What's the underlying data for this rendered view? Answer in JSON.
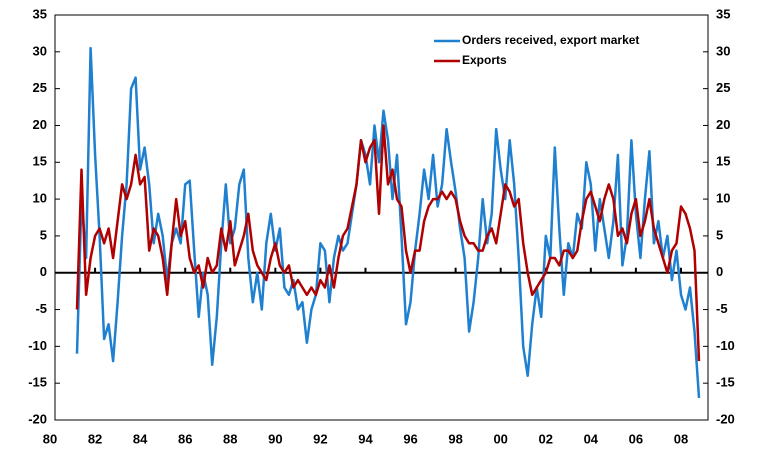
{
  "chart_data": {
    "type": "line",
    "x": [
      1981.2,
      1981.4,
      1981.6,
      1981.8,
      1982.0,
      1982.2,
      1982.4,
      1982.6,
      1982.8,
      1983.0,
      1983.2,
      1983.4,
      1983.6,
      1983.8,
      1984.0,
      1984.2,
      1984.4,
      1984.6,
      1984.8,
      1985.0,
      1985.2,
      1985.4,
      1985.6,
      1985.8,
      1986.0,
      1986.2,
      1986.4,
      1986.6,
      1986.8,
      1987.0,
      1987.2,
      1987.4,
      1987.6,
      1987.8,
      1988.0,
      1988.2,
      1988.4,
      1988.6,
      1988.8,
      1989.0,
      1989.2,
      1989.4,
      1989.6,
      1989.8,
      1990.0,
      1990.2,
      1990.4,
      1990.6,
      1990.8,
      1991.0,
      1991.2,
      1991.4,
      1991.6,
      1991.8,
      1992.0,
      1992.2,
      1992.4,
      1992.6,
      1992.8,
      1993.0,
      1993.2,
      1993.4,
      1993.6,
      1993.8,
      1994.0,
      1994.2,
      1994.4,
      1994.6,
      1994.8,
      1995.0,
      1995.2,
      1995.4,
      1995.6,
      1995.8,
      1996.0,
      1996.2,
      1996.4,
      1996.6,
      1996.8,
      1997.0,
      1997.2,
      1997.4,
      1997.6,
      1997.8,
      1998.0,
      1998.2,
      1998.4,
      1998.6,
      1998.8,
      1999.0,
      1999.2,
      1999.4,
      1999.6,
      1999.8,
      2000.0,
      2000.2,
      2000.4,
      2000.6,
      2000.8,
      2001.0,
      2001.2,
      2001.4,
      2001.6,
      2001.8,
      2002.0,
      2002.2,
      2002.4,
      2002.6,
      2002.8,
      2003.0,
      2003.2,
      2003.4,
      2003.6,
      2003.8,
      2004.0,
      2004.2,
      2004.4,
      2004.6,
      2004.8,
      2005.0,
      2005.2,
      2005.4,
      2005.6,
      2005.8,
      2006.0,
      2006.2,
      2006.4,
      2006.6,
      2006.8,
      2007.0,
      2007.2,
      2007.4,
      2007.6,
      2007.8,
      2008.0,
      2008.2,
      2008.4,
      2008.6,
      2008.8
    ],
    "series": [
      {
        "name": "Orders received, export market",
        "color": "#1f80d0",
        "values": [
          -11,
          10,
          2,
          30.5,
          16,
          5,
          -9,
          -7,
          -12,
          -4,
          5,
          12,
          25,
          26.5,
          14,
          17,
          12,
          4,
          8,
          5,
          -1,
          4,
          6,
          4,
          12,
          12.5,
          3,
          -6,
          0,
          -3,
          -12.5,
          -6,
          4,
          12,
          4,
          6,
          12,
          14,
          2,
          -4,
          0,
          -5,
          4,
          8,
          3,
          6,
          -2,
          -3,
          -1,
          -5,
          -4,
          -9.5,
          -5,
          -3,
          4,
          3,
          -4,
          2,
          5,
          3,
          4,
          8,
          12,
          18,
          16,
          12,
          20,
          15,
          22,
          18,
          10,
          16,
          5,
          -7,
          -4,
          3,
          8,
          14,
          10,
          16,
          9,
          12,
          19.5,
          15,
          11,
          6,
          2,
          -8,
          -4,
          2,
          10,
          4,
          8,
          19.5,
          14,
          10,
          18,
          12,
          2,
          -10,
          -14,
          -7,
          -2,
          -6,
          5,
          2,
          17,
          6,
          -3,
          4,
          2,
          8,
          6,
          15,
          12,
          3,
          10,
          6,
          2,
          7,
          16,
          1,
          5,
          18,
          8,
          2,
          10,
          16.5,
          4,
          7,
          2,
          5,
          -1,
          3,
          -3,
          -5,
          -2,
          -8,
          -17
        ]
      },
      {
        "name": "Exports",
        "color": "#b00000",
        "values": [
          -5,
          14,
          -3,
          2,
          5,
          6,
          4,
          6,
          2,
          7,
          12,
          10,
          12,
          16,
          12,
          13,
          3,
          6,
          5,
          2,
          -3,
          4,
          10,
          5,
          7,
          2,
          0,
          1,
          -2,
          2,
          0,
          1,
          6,
          3,
          7,
          1,
          3,
          5,
          8,
          3,
          1,
          0,
          -1,
          2,
          4,
          1,
          0,
          1,
          -2,
          -1,
          -2,
          -3,
          -2,
          -3,
          -1,
          -2,
          1,
          -2,
          2,
          5,
          6,
          9,
          12,
          18,
          15,
          17,
          18,
          8,
          20,
          12,
          14,
          10,
          9,
          3,
          0,
          3,
          3,
          7,
          9,
          10,
          10,
          11,
          10,
          11,
          10,
          7,
          5,
          4,
          4,
          3,
          3,
          5,
          6,
          4,
          8,
          12,
          11,
          9,
          10,
          4,
          0,
          -3,
          -2,
          -1,
          0,
          2,
          2,
          1,
          3,
          3,
          2,
          3,
          7,
          10,
          11,
          9,
          7,
          10,
          12,
          10,
          5,
          6,
          4,
          8,
          10,
          5,
          7,
          10,
          6,
          4,
          2,
          0,
          3,
          4,
          9,
          8,
          6,
          3,
          -12
        ]
      }
    ],
    "xlim": [
      1980,
      2009.2
    ],
    "xticks": [
      {
        "value": 1980,
        "label": "80"
      },
      {
        "value": 1982,
        "label": "82"
      },
      {
        "value": 1984,
        "label": "84"
      },
      {
        "value": 1986,
        "label": "86"
      },
      {
        "value": 1988,
        "label": "88"
      },
      {
        "value": 1990,
        "label": "90"
      },
      {
        "value": 1992,
        "label": "92"
      },
      {
        "value": 1994,
        "label": "94"
      },
      {
        "value": 1996,
        "label": "96"
      },
      {
        "value": 1998,
        "label": "98"
      },
      {
        "value": 2000,
        "label": "00"
      },
      {
        "value": 2002,
        "label": "02"
      },
      {
        "value": 2004,
        "label": "04"
      },
      {
        "value": 2006,
        "label": "06"
      },
      {
        "value": 2008,
        "label": "08"
      }
    ],
    "ylim": [
      -20,
      35
    ],
    "yticks": [
      -20,
      -15,
      -10,
      -5,
      0,
      5,
      10,
      15,
      20,
      25,
      30,
      35
    ],
    "legend": "upper right"
  }
}
